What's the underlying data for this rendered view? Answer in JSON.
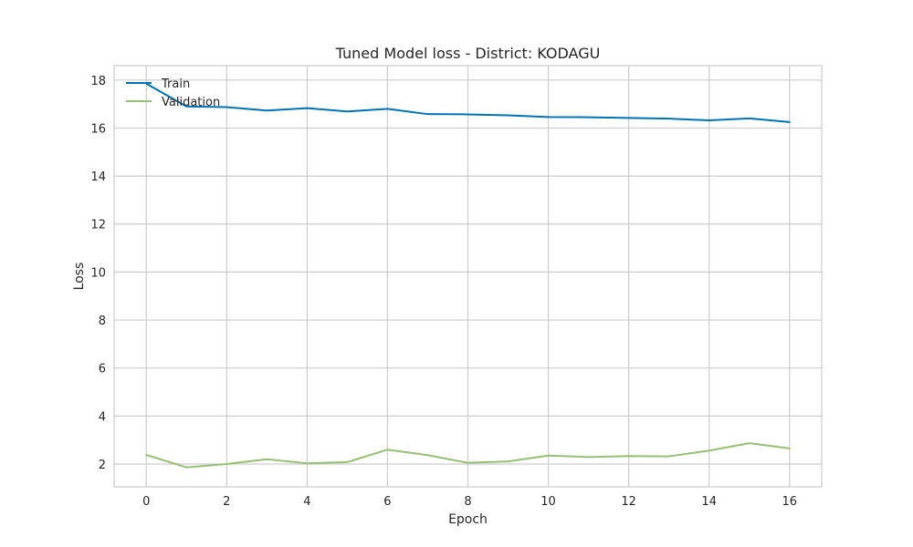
{
  "chart_data": {
    "type": "line",
    "title": "Tuned Model loss - District: KODAGU",
    "xlabel": "Epoch",
    "ylabel": "Loss",
    "x": [
      0,
      1,
      2,
      3,
      4,
      5,
      6,
      7,
      8,
      9,
      10,
      11,
      12,
      13,
      14,
      15,
      16
    ],
    "xlim": [
      -0.8,
      16.8
    ],
    "ylim": [
      1.05,
      18.6
    ],
    "xticks": [
      0,
      2,
      4,
      6,
      8,
      10,
      12,
      14,
      16
    ],
    "yticks": [
      2,
      4,
      6,
      8,
      10,
      12,
      14,
      16,
      18
    ],
    "grid": true,
    "legend_position": "upper-left",
    "series": [
      {
        "name": "Train",
        "color": "#0072B2",
        "values": [
          17.85,
          16.9,
          16.87,
          16.73,
          16.83,
          16.69,
          16.8,
          16.58,
          16.57,
          16.53,
          16.46,
          16.45,
          16.42,
          16.39,
          16.32,
          16.4,
          16.25
        ]
      },
      {
        "name": "Validation",
        "color": "#97BF76",
        "values": [
          2.38,
          1.86,
          2.0,
          2.2,
          2.03,
          2.08,
          2.6,
          2.37,
          2.05,
          2.11,
          2.35,
          2.29,
          2.33,
          2.32,
          2.56,
          2.87,
          2.65
        ]
      }
    ]
  }
}
